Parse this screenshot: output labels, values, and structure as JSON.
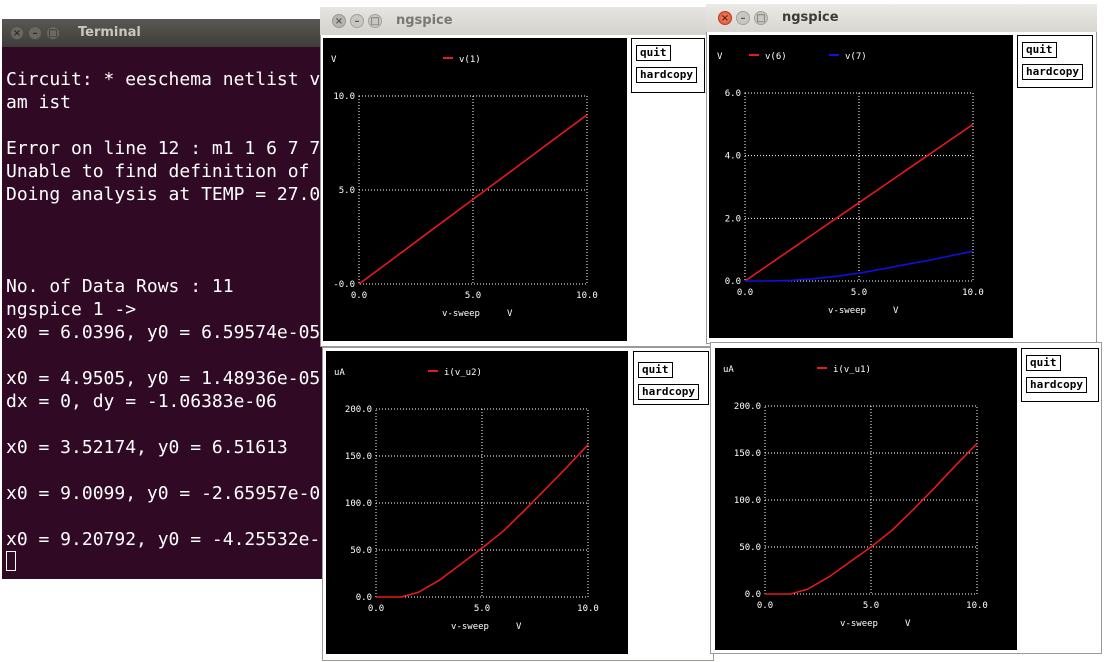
{
  "terminal": {
    "title": "Terminal",
    "lines": [
      "Circuit: * eeschema netlist v",
      "am ist",
      "",
      "Error on line 12 : m1 1 6 7 7",
      "Unable to find definition of",
      "Doing analysis at TEMP = 27.0",
      "",
      "",
      "",
      "No. of Data Rows : 11",
      "ngspice 1 ->",
      "x0 = 6.0396, y0 = 6.59574e-05",
      "",
      "x0 = 4.9505, y0 = 1.48936e-05",
      "dx = 0, dy = -1.06383e-06",
      "",
      "x0 = 3.52174, y0 = 6.51613",
      "",
      "x0 = 9.0099, y0 = -2.65957e-0",
      "",
      "x0 = 9.20792, y0 = -4.25532e-"
    ]
  },
  "windows": [
    {
      "title": "ngspice",
      "quit_label": "quit",
      "hardcopy_label": "hardcopy",
      "chart_data": {
        "type": "line",
        "y_unit": "V",
        "xlabel": "v-sweep",
        "x_unit": "V",
        "xlim": [
          0,
          10
        ],
        "ylim": [
          0,
          10
        ],
        "xticks": [
          "0.0",
          "5.0",
          "10.0"
        ],
        "yticks": [
          "-0.0",
          "5.0",
          "10.0"
        ],
        "ytick_values": [
          0,
          5,
          10
        ],
        "series": [
          {
            "name": "v(1)",
            "color": "#e41a1c",
            "x": [
              0,
              1,
              2,
              3,
              4,
              5,
              6,
              7,
              8,
              9,
              10
            ],
            "y": [
              0,
              0.9,
              1.8,
              2.7,
              3.6,
              4.5,
              5.4,
              6.3,
              7.2,
              8.1,
              9.0
            ]
          }
        ]
      }
    },
    {
      "title": "ngspice",
      "quit_label": "quit",
      "hardcopy_label": "hardcopy",
      "chart_data": {
        "type": "line",
        "y_unit": "V",
        "xlabel": "v-sweep",
        "x_unit": "V",
        "xlim": [
          0,
          10
        ],
        "ylim": [
          0,
          6
        ],
        "xticks": [
          "0.0",
          "5.0",
          "10.0"
        ],
        "yticks": [
          "0.0",
          "2.0",
          "4.0",
          "6.0"
        ],
        "ytick_values": [
          0,
          2,
          4,
          6
        ],
        "series": [
          {
            "name": "v(6)",
            "color": "#e41a1c",
            "x": [
              0,
              1,
              2,
              3,
              4,
              5,
              6,
              7,
              8,
              9,
              10
            ],
            "y": [
              0,
              0.5,
              1.0,
              1.5,
              2.0,
              2.5,
              3.0,
              3.5,
              4.0,
              4.5,
              5.0
            ]
          },
          {
            "name": "v(7)",
            "color": "#1010e0",
            "x": [
              0,
              1,
              2,
              3,
              4,
              5,
              6,
              7,
              8,
              9,
              10
            ],
            "y": [
              0,
              0.0,
              0.02,
              0.07,
              0.15,
              0.25,
              0.38,
              0.52,
              0.65,
              0.8,
              0.95
            ]
          }
        ]
      }
    },
    {
      "title": "ngspice",
      "quit_label": "quit",
      "hardcopy_label": "hardcopy",
      "chart_data": {
        "type": "line",
        "y_unit": "uA",
        "xlabel": "v-sweep",
        "x_unit": "V",
        "xlim": [
          0,
          10
        ],
        "ylim": [
          0,
          200
        ],
        "xticks": [
          "0.0",
          "5.0",
          "10.0"
        ],
        "yticks": [
          "0.0",
          "50.0",
          "100.0",
          "150.0",
          "200.0"
        ],
        "ytick_values": [
          0,
          50,
          100,
          150,
          200
        ],
        "series": [
          {
            "name": "i(v_u2)",
            "color": "#e41a1c",
            "x": [
              0,
              1,
              1.2,
              2,
              3,
              4,
              5,
              6,
              7,
              8,
              9,
              10
            ],
            "y": [
              0,
              0,
              0,
              5,
              18,
              35,
              52,
              70,
              92,
              115,
              138,
              162
            ]
          }
        ]
      }
    },
    {
      "title": "ngspice",
      "quit_label": "quit",
      "hardcopy_label": "hardcopy",
      "chart_data": {
        "type": "line",
        "y_unit": "uA",
        "xlabel": "v-sweep",
        "x_unit": "V",
        "xlim": [
          0,
          10
        ],
        "ylim": [
          0,
          200
        ],
        "xticks": [
          "0.0",
          "5.0",
          "10.0"
        ],
        "yticks": [
          "0.0",
          "50.0",
          "100.0",
          "150.0",
          "200.0"
        ],
        "ytick_values": [
          0,
          50,
          100,
          150,
          200
        ],
        "series": [
          {
            "name": "i(v_u1)",
            "color": "#e41a1c",
            "x": [
              0,
              1,
              1.2,
              2,
              3,
              4,
              5,
              6,
              7,
              8,
              9,
              10
            ],
            "y": [
              0,
              0,
              0,
              5,
              18,
              34,
              50,
              68,
              90,
              113,
              137,
              160
            ]
          }
        ]
      }
    }
  ]
}
